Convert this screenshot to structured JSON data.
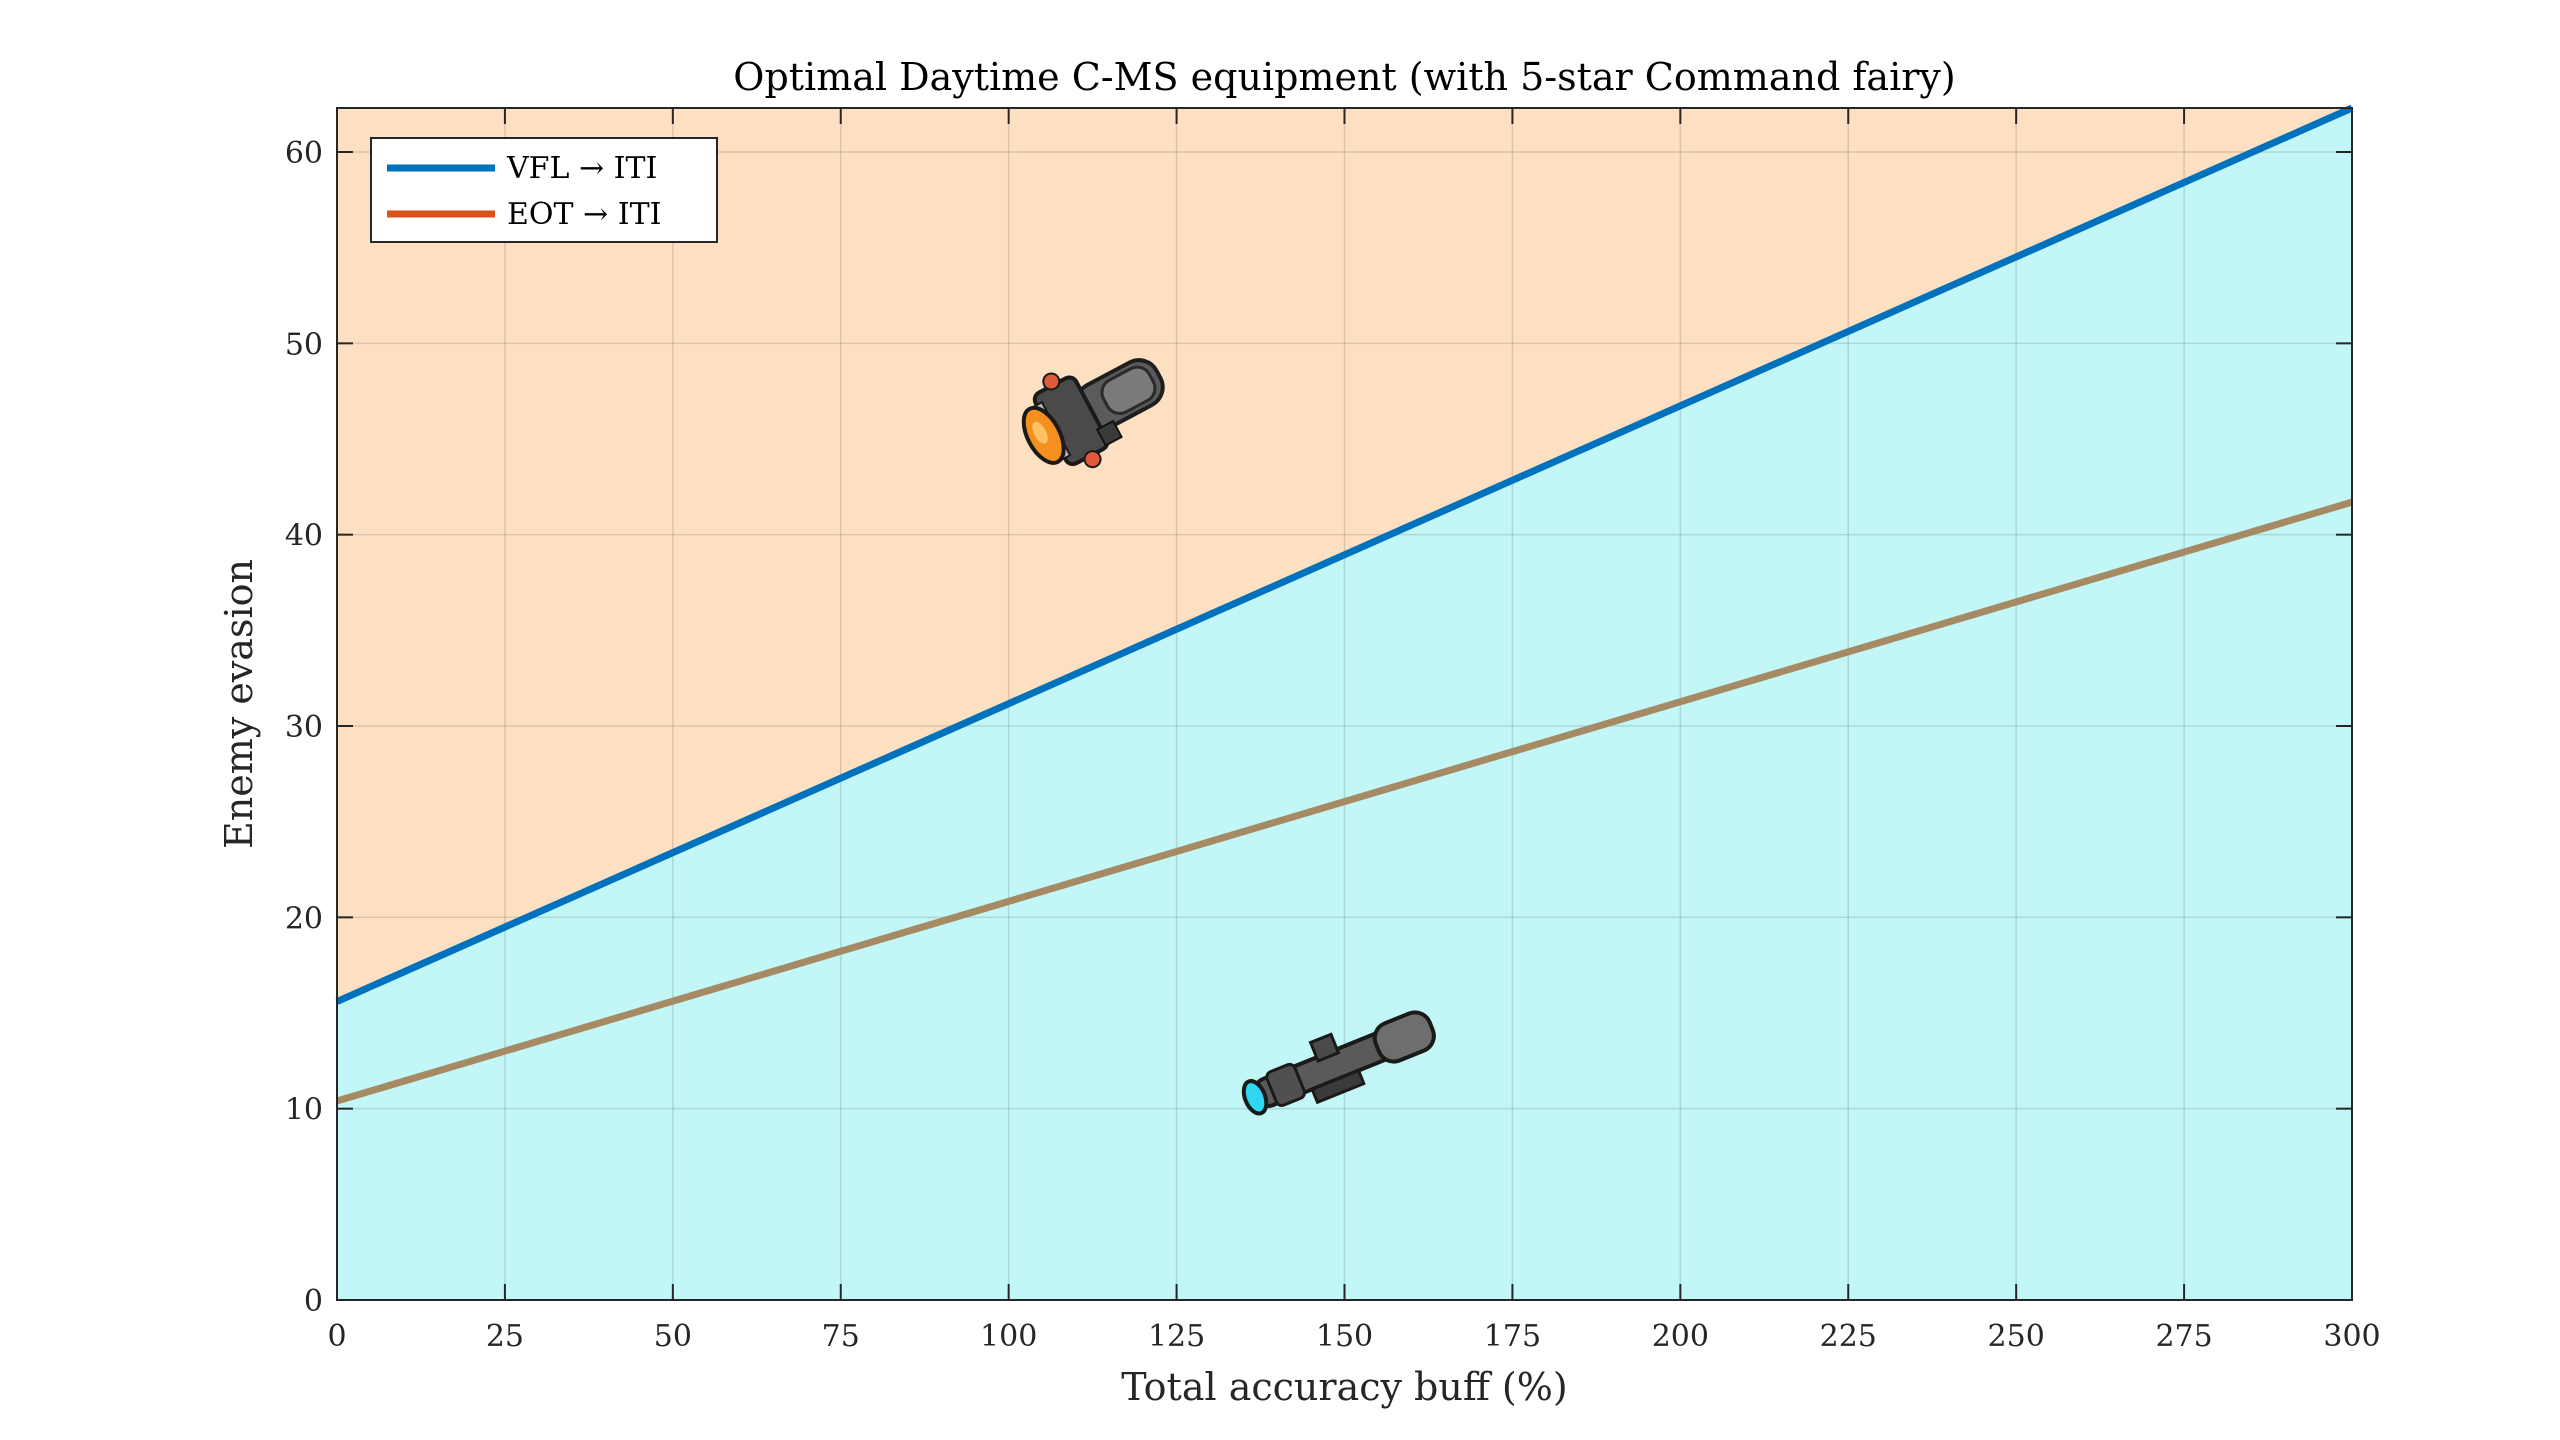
{
  "chart_data": {
    "type": "area",
    "title": "Optimal Daytime C-MS equipment (with 5-star Command fairy)",
    "xlabel": "Total accuracy buff (%)",
    "ylabel": "Enemy evasion",
    "xlim": [
      0,
      300
    ],
    "ylim": [
      0,
      62.3
    ],
    "xticks": [
      0,
      25,
      50,
      75,
      100,
      125,
      150,
      175,
      200,
      225,
      250,
      275,
      300
    ],
    "yticks": [
      0,
      10,
      20,
      30,
      40,
      50,
      60
    ],
    "grid": true,
    "legend_location": "top-left",
    "series": [
      {
        "name": "VFL → ITI",
        "x": [
          0,
          300
        ],
        "y": [
          15.6,
          62.3
        ],
        "color": "#0072BD"
      },
      {
        "name": "EOT → ITI",
        "x": [
          0,
          300
        ],
        "y": [
          10.4,
          41.7
        ],
        "color": "#D95319",
        "plotted_color": "#A68A64"
      }
    ],
    "regions": [
      {
        "description": "above VFL line",
        "icon": "red-dot-sight-icon",
        "fill": "#FDDFC2",
        "icon_at": [
          110,
          46
        ]
      },
      {
        "description": "below VFL line",
        "icon": "telescopic-scope-icon",
        "fill": "#C3F6F6",
        "icon_at": [
          147,
          12.5
        ]
      }
    ]
  }
}
